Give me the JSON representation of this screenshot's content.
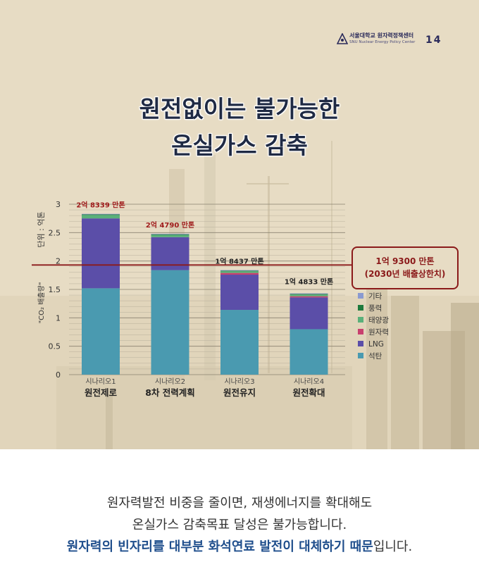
{
  "header": {
    "org_kr": "서울대학교 원자력정책센터",
    "org_en": "SNU Nuclear Energy Policy Center",
    "page_number": "14"
  },
  "title": {
    "line1": "원전없이는 불가능한",
    "line2": "온실가스 감축"
  },
  "caption": {
    "line1": "원자력발전 비중을 줄이면, 재생에너지를 확대해도",
    "line2": "온실가스 감축목표 달성은 불가능합니다.",
    "line3_highlight": "원자력의 빈자리를 대부분 화석연료 발전이 대체하기 때문",
    "line3_rest": "입니다."
  },
  "colors": {
    "poster_bg": "#e7dcc4",
    "target_line": "#8b1a1a",
    "title_text": "#1f2a44",
    "caption_highlight": "#1f4e8c"
  },
  "chart_data": {
    "type": "bar",
    "stacked": true,
    "categories": [
      "시나리오1",
      "시나리오2",
      "시나리오3",
      "시나리오4"
    ],
    "category_titles": [
      "원전제로",
      "8차 전력계획",
      "원전유지",
      "원전확대"
    ],
    "series": [
      {
        "name": "석탄",
        "color": "#4a9ab0",
        "values": [
          1.52,
          1.84,
          1.14,
          0.8
        ]
      },
      {
        "name": "LNG",
        "color": "#5b4ea8",
        "values": [
          1.23,
          0.58,
          0.62,
          0.56
        ]
      },
      {
        "name": "원자력",
        "color": "#c8406e",
        "values": [
          0.0,
          0.0,
          0.03,
          0.02
        ]
      },
      {
        "name": "태양광",
        "color": "#5ab07a",
        "values": [
          0.06,
          0.04,
          0.03,
          0.03
        ]
      },
      {
        "name": "풍력",
        "color": "#1e7a3c",
        "values": [
          0.01,
          0.01,
          0.01,
          0.01
        ]
      },
      {
        "name": "기타",
        "color": "#8a9ad0",
        "values": [
          0.01,
          0.01,
          0.01,
          0.01
        ]
      }
    ],
    "totals": [
      2.8339,
      2.479,
      1.8437,
      1.4833
    ],
    "total_labels": [
      "2억 8339 만톤",
      "2억 4790 만톤",
      "1억 8437 만톤",
      "1억 4833 만톤"
    ],
    "total_label_colors": [
      "#a01c1c",
      "#a01c1c",
      "#222222",
      "#222222"
    ],
    "ylabel_unit": "단위 : 억톤",
    "ylabel": "\"CO₂ 배출량\"",
    "ylim": [
      0,
      3
    ],
    "yticks": [
      0,
      0.5,
      1,
      1.5,
      2,
      2.5,
      3
    ],
    "ytick_labels": [
      "0",
      "0.5",
      "1",
      "1.5",
      "2",
      "2.5",
      "3"
    ],
    "grid": true,
    "target": {
      "value": 1.93,
      "label_line1": "1억 9300 만톤",
      "label_line2": "(2030년 배출상한치)"
    },
    "legend_position": "right"
  }
}
